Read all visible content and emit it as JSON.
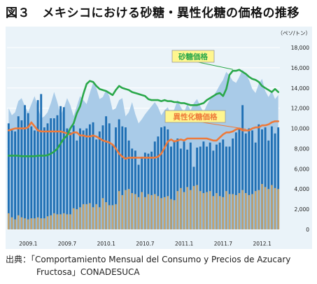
{
  "figure": {
    "title": "図３　メキシコにおける砂糖・異性化糖の価格の推移",
    "unit_label": "（ペソ/トン）",
    "source_line1": "出典：「Comportamiento Mensual del Consumo y Precios de Azucary",
    "source_line2": "Fructosa」CONADESUCA"
  },
  "chart_data": {
    "type": "bar",
    "ylabel": "（ペソ/トン）",
    "ylim": [
      0,
      18000
    ],
    "yticks": [
      0,
      2000,
      4000,
      6000,
      8000,
      10000,
      12000,
      14000,
      16000,
      18000
    ],
    "grid": true,
    "x_tick_labels": [
      "2009.1",
      "2009.7",
      "2010.1",
      "2010.7",
      "2011.1",
      "2011.7",
      "2012.1"
    ],
    "x_tick_indices": [
      0,
      12,
      24,
      36,
      48,
      60,
      72
    ],
    "categories_count": 84,
    "annotations": [
      {
        "text": "砂糖価格",
        "series": "sugar_price"
      },
      {
        "text": "異性化糖価格",
        "series": "hfcs_price"
      }
    ],
    "colors": {
      "background": "#eaf3f9",
      "area": "#a9cbe8",
      "blue_bars": "#1f6fb4",
      "tan_bars": "#c9a46a",
      "sugar_line": "#2aa84a",
      "hfcs_line": "#ee7a3a",
      "label_box": "#fff68f"
    },
    "series": [
      {
        "key": "area",
        "kind": "area",
        "values": [
          12000,
          11300,
          11600,
          12700,
          13000,
          12200,
          11600,
          12400,
          13200,
          12100,
          11000,
          11200,
          11600,
          12500,
          13600,
          12600,
          11300,
          12000,
          13000,
          12300,
          11200,
          12200,
          13200,
          12800,
          12400,
          13500,
          14500,
          14000,
          12900,
          13100,
          13800,
          13200,
          11800,
          12000,
          12800,
          13000,
          11200,
          11600,
          12600,
          11400,
          10500,
          10900,
          11400,
          11800,
          12200,
          12600,
          12100,
          11300,
          11800,
          12100,
          11300,
          11900,
          12800,
          12100,
          11600,
          12400,
          11800,
          12500,
          12900,
          12200,
          11600,
          12300,
          12900,
          13200,
          13700,
          14300,
          14800,
          15600,
          15200,
          14700,
          14500,
          15100,
          15800,
          15400,
          14800,
          13900,
          13500,
          14400,
          14900,
          13700,
          13100,
          13700,
          12900,
          13300
        ]
      },
      {
        "key": "blue_bars",
        "kind": "bar",
        "values": [
          10500,
          9800,
          9700,
          11200,
          10800,
          12300,
          11500,
          10200,
          9800,
          12800,
          13400,
          10100,
          10500,
          11000,
          11000,
          11300,
          12200,
          12100,
          10000,
          9600,
          10300,
          8800,
          10000,
          9800,
          10000,
          10400,
          10600,
          8900,
          9700,
          10300,
          11200,
          10500,
          8400,
          10100,
          10900,
          10200,
          10100,
          8800,
          8000,
          7800,
          6400,
          7200,
          7600,
          7500,
          7700,
          8700,
          9200,
          10100,
          10200,
          9900,
          8200,
          8800,
          9000,
          8000,
          8700,
          7900,
          8600,
          6200,
          8100,
          8200,
          8700,
          8200,
          8600,
          7800,
          8400,
          8600,
          8900,
          8200,
          8200,
          9000,
          9600,
          10000,
          12300,
          9500,
          10000,
          9800,
          8600,
          10400,
          9900,
          10100,
          8800,
          10200,
          9500,
          10100
        ]
      },
      {
        "key": "tan_bars",
        "kind": "bar",
        "values": [
          1600,
          1200,
          1000,
          1400,
          1200,
          1100,
          1000,
          1100,
          1100,
          1200,
          1100,
          1100,
          1300,
          1400,
          1600,
          1500,
          1500,
          1600,
          1500,
          1500,
          2100,
          2000,
          2200,
          2500,
          2500,
          2600,
          2200,
          2500,
          2200,
          3100,
          2700,
          2400,
          2400,
          2500,
          3800,
          3400,
          3900,
          4000,
          3600,
          3500,
          3200,
          3700,
          3200,
          3500,
          3400,
          3500,
          3300,
          3100,
          3200,
          3300,
          3000,
          2900,
          3800,
          4100,
          3700,
          4200,
          3900,
          4300,
          4400,
          3800,
          3600,
          3700,
          3800,
          3300,
          3600,
          3300,
          3200,
          3800,
          3500,
          3500,
          3400,
          3600,
          3900,
          3600,
          3400,
          3500,
          3800,
          3900,
          4500,
          4200,
          4000,
          4400,
          4100,
          4000
        ]
      },
      {
        "key": "sugar_price",
        "kind": "line",
        "values": [
          7300,
          7300,
          7300,
          7300,
          7250,
          7250,
          7250,
          7250,
          7250,
          7300,
          7300,
          7300,
          7350,
          7500,
          7700,
          8000,
          8500,
          9000,
          9300,
          10000,
          10500,
          11500,
          12200,
          13400,
          14400,
          14700,
          14600,
          14200,
          13900,
          13800,
          13700,
          13500,
          13300,
          13800,
          14200,
          14000,
          13900,
          13800,
          13600,
          13500,
          13400,
          13300,
          13200,
          12900,
          12800,
          12800,
          12800,
          12700,
          12800,
          12700,
          12700,
          12600,
          12600,
          12500,
          12500,
          12400,
          12300,
          12300,
          12300,
          12400,
          12500,
          12800,
          13000,
          13200,
          13400,
          13500,
          13200,
          13900,
          15300,
          15700,
          15700,
          15800,
          15600,
          15400,
          15100,
          14900,
          14800,
          14600,
          14200,
          14000,
          13800,
          13600,
          13900,
          13600
        ]
      },
      {
        "key": "hfcs_price",
        "kind": "line",
        "values": [
          9800,
          9900,
          10000,
          10000,
          10000,
          10000,
          10100,
          10600,
          10200,
          9800,
          9700,
          9700,
          9700,
          9700,
          9700,
          9700,
          9700,
          9600,
          9500,
          9400,
          9600,
          9600,
          9300,
          9300,
          9200,
          9200,
          9300,
          9200,
          9000,
          8800,
          8700,
          8600,
          8400,
          8000,
          7500,
          7200,
          7000,
          7100,
          7100,
          7100,
          7100,
          7100,
          7100,
          7100,
          7100,
          7100,
          7200,
          7500,
          8100,
          8700,
          8900,
          8700,
          8800,
          8900,
          8800,
          9000,
          9000,
          9000,
          9000,
          9000,
          9000,
          9000,
          8900,
          8800,
          8800,
          9100,
          9400,
          9600,
          9600,
          9700,
          9900,
          10000,
          9800,
          9800,
          9800,
          10000,
          10100,
          10100,
          10300,
          10300,
          10400,
          10600,
          10700,
          10700
        ]
      }
    ]
  }
}
